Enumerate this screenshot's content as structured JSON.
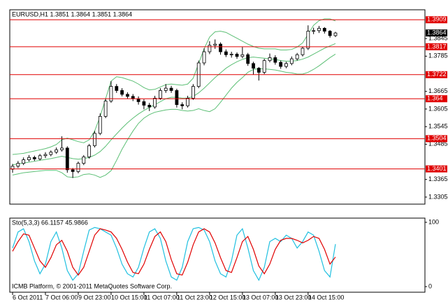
{
  "chart_data": [
    {
      "type": "candlestick",
      "title": "EURUSD,H1  1.3851 1.3864 1.3851 1.3864",
      "categories": [
        "6 Oct 2011",
        null,
        null,
        null,
        null,
        null,
        "7 Oct 06:00",
        null,
        null,
        null,
        null,
        null,
        "9 Oct 23:00",
        null,
        null,
        null,
        null,
        null,
        "10 Oct 15:00",
        null,
        null,
        null,
        null,
        null,
        "11 Oct 07:00",
        null,
        null,
        null,
        null,
        null,
        "11 Oct 23:00",
        null,
        null,
        null,
        null,
        null,
        "12 Oct 15:00",
        null,
        null,
        null,
        null,
        null,
        "13 Oct 07:00",
        null,
        null,
        null,
        null,
        null,
        "13 Oct 23:00",
        null,
        null,
        null,
        null,
        null,
        "14 Oct 15:00",
        null,
        null,
        null,
        null,
        null
      ],
      "open": [
        1.34,
        1.341,
        1.342,
        1.3432,
        1.344,
        1.3435,
        1.3446,
        1.345,
        1.3458,
        1.3466,
        1.3472,
        1.3398,
        1.3392,
        1.342,
        1.3442,
        1.348,
        1.3522,
        1.358,
        1.3632,
        1.3682,
        1.3668,
        1.3655,
        1.3648,
        1.364,
        1.363,
        1.3618,
        1.3612,
        1.3642,
        1.3668,
        1.3676,
        1.3668,
        1.362,
        1.3616,
        1.3642,
        1.3682,
        1.3762,
        1.38,
        1.3822,
        1.3826,
        1.38,
        1.379,
        1.3792,
        1.3784,
        1.379,
        1.376,
        1.3744,
        1.373,
        1.377,
        1.378,
        1.3764,
        1.375,
        1.376,
        1.3776,
        1.379,
        1.3812,
        1.387,
        1.3872,
        1.388,
        1.387,
        1.3855
      ],
      "high": [
        1.3418,
        1.3428,
        1.344,
        1.3448,
        1.3446,
        1.3452,
        1.3458,
        1.3464,
        1.3474,
        1.3512,
        1.3478,
        1.3404,
        1.3426,
        1.3448,
        1.3486,
        1.353,
        1.359,
        1.364,
        1.37,
        1.369,
        1.3676,
        1.3662,
        1.3656,
        1.3648,
        1.3638,
        1.3626,
        1.365,
        1.3676,
        1.369,
        1.3684,
        1.3674,
        1.3628,
        1.365,
        1.369,
        1.377,
        1.3812,
        1.3836,
        1.3842,
        1.3832,
        1.3808,
        1.38,
        1.3798,
        1.3816,
        1.3796,
        1.3766,
        1.3748,
        1.3776,
        1.3794,
        1.3788,
        1.377,
        1.3766,
        1.3784,
        1.3796,
        1.3818,
        1.389,
        1.3882,
        1.3888,
        1.3884,
        1.3874,
        1.3868
      ],
      "low": [
        1.3388,
        1.3404,
        1.3414,
        1.3426,
        1.3428,
        1.343,
        1.3438,
        1.3444,
        1.3452,
        1.346,
        1.3388,
        1.337,
        1.3386,
        1.3414,
        1.3436,
        1.3474,
        1.3516,
        1.3574,
        1.3626,
        1.366,
        1.3648,
        1.364,
        1.3632,
        1.362,
        1.3604,
        1.3598,
        1.3606,
        1.3636,
        1.366,
        1.366,
        1.361,
        1.3604,
        1.361,
        1.3636,
        1.3676,
        1.3754,
        1.3792,
        1.381,
        1.379,
        1.3782,
        1.378,
        1.3776,
        1.3778,
        1.3752,
        1.3722,
        1.3702,
        1.3724,
        1.3764,
        1.3756,
        1.3742,
        1.3744,
        1.3754,
        1.377,
        1.3784,
        1.3806,
        1.386,
        1.3864,
        1.3862,
        1.3848,
        1.385
      ],
      "close": [
        1.341,
        1.342,
        1.3432,
        1.344,
        1.3435,
        1.3446,
        1.345,
        1.3458,
        1.3466,
        1.3472,
        1.3398,
        1.3392,
        1.342,
        1.3442,
        1.348,
        1.3522,
        1.358,
        1.3632,
        1.3682,
        1.3668,
        1.3655,
        1.3648,
        1.364,
        1.363,
        1.3618,
        1.3612,
        1.3642,
        1.3668,
        1.3676,
        1.3668,
        1.362,
        1.3616,
        1.3642,
        1.3682,
        1.3762,
        1.38,
        1.3822,
        1.3826,
        1.38,
        1.379,
        1.3792,
        1.3784,
        1.379,
        1.376,
        1.3744,
        1.373,
        1.377,
        1.378,
        1.3764,
        1.375,
        1.376,
        1.3776,
        1.379,
        1.3812,
        1.387,
        1.3872,
        1.388,
        1.387,
        1.3855,
        1.3864
      ],
      "series": [
        {
          "color": "#5cbf75",
          "values": [
            1.345,
            1.3452,
            1.3454,
            1.3458,
            1.3462,
            1.3466,
            1.347,
            1.3476,
            1.3484,
            1.35,
            1.3506,
            1.35,
            1.3494,
            1.349,
            1.35,
            1.353,
            1.358,
            1.364,
            1.37,
            1.3715,
            1.3712,
            1.3706,
            1.37,
            1.369,
            1.3678,
            1.367,
            1.3672,
            1.368,
            1.3688,
            1.369,
            1.3688,
            1.3686,
            1.369,
            1.371,
            1.376,
            1.381,
            1.385,
            1.3868,
            1.387,
            1.3866,
            1.3856,
            1.3846,
            1.3836,
            1.3826,
            1.3818,
            1.3812,
            1.381,
            1.381,
            1.381,
            1.3806,
            1.3806,
            1.3808,
            1.3816,
            1.383,
            1.386,
            1.389,
            1.3906,
            1.3912,
            1.3912,
            1.3905
          ]
        },
        {
          "color": "#5cbf75",
          "values": [
            1.3415,
            1.3418,
            1.3421,
            1.3424,
            1.3427,
            1.343,
            1.3433,
            1.3436,
            1.344,
            1.3444,
            1.344,
            1.3436,
            1.3434,
            1.3436,
            1.344,
            1.3448,
            1.346,
            1.3478,
            1.35,
            1.352,
            1.354,
            1.3558,
            1.3574,
            1.3588,
            1.36,
            1.361,
            1.362,
            1.363,
            1.364,
            1.3645,
            1.3645,
            1.3642,
            1.3642,
            1.3648,
            1.366,
            1.3676,
            1.3694,
            1.3712,
            1.3728,
            1.3744,
            1.3756,
            1.3766,
            1.3774,
            1.378,
            1.3782,
            1.378,
            1.3778,
            1.3776,
            1.3774,
            1.377,
            1.3768,
            1.3768,
            1.377,
            1.3775,
            1.3782,
            1.3792,
            1.3802,
            1.3812,
            1.382,
            1.3828
          ]
        },
        {
          "color": "#5cbf75",
          "values": [
            1.338,
            1.3384,
            1.3388,
            1.339,
            1.3392,
            1.3394,
            1.3396,
            1.3396,
            1.3396,
            1.3388,
            1.3374,
            1.3372,
            1.3374,
            1.3382,
            1.3384,
            1.338,
            1.3372,
            1.338,
            1.3395,
            1.343,
            1.3468,
            1.35,
            1.353,
            1.3556,
            1.3574,
            1.3586,
            1.3594,
            1.3598,
            1.3602,
            1.3604,
            1.3604,
            1.36,
            1.3598,
            1.36,
            1.3606,
            1.36,
            1.3596,
            1.3606,
            1.3628,
            1.3652,
            1.3676,
            1.3696,
            1.3712,
            1.373,
            1.374,
            1.3742,
            1.3742,
            1.374,
            1.3738,
            1.3734,
            1.373,
            1.3728,
            1.3724,
            1.3724,
            1.373,
            1.374,
            1.3752,
            1.3766,
            1.378,
            1.3792
          ]
        }
      ],
      "levels": [
        1.3909,
        1.3817,
        1.3722,
        1.364,
        1.3504,
        1.3401
      ],
      "level_color": "#e00000",
      "current_price": 1.3864,
      "ylim": [
        1.3281,
        1.3943
      ],
      "yticks": [
        1.3845,
        1.3785,
        1.3665,
        1.3605,
        1.3545,
        1.3485,
        1.3365,
        1.3305
      ]
    },
    {
      "type": "line",
      "title": "Sto(5,3,3) 66.1157 45.9866",
      "series": [
        {
          "color": "#20c0e0",
          "values": [
            60,
            85,
            90,
            70,
            40,
            20,
            35,
            70,
            85,
            60,
            25,
            10,
            20,
            55,
            88,
            92,
            90,
            85,
            80,
            60,
            35,
            20,
            15,
            30,
            60,
            85,
            90,
            75,
            40,
            15,
            10,
            30,
            70,
            90,
            92,
            88,
            70,
            40,
            20,
            15,
            40,
            80,
            90,
            60,
            25,
            10,
            30,
            70,
            75,
            70,
            80,
            75,
            60,
            70,
            85,
            80,
            55,
            25,
            15,
            66.1157
          ]
        },
        {
          "color": "#e00000",
          "values": [
            55,
            70,
            82,
            80,
            60,
            40,
            30,
            45,
            65,
            72,
            55,
            30,
            18,
            30,
            55,
            80,
            90,
            88,
            85,
            75,
            58,
            38,
            22,
            20,
            35,
            58,
            78,
            85,
            70,
            42,
            20,
            18,
            38,
            65,
            85,
            90,
            85,
            68,
            45,
            25,
            22,
            45,
            70,
            78,
            58,
            32,
            20,
            35,
            58,
            72,
            75,
            75,
            72,
            68,
            72,
            78,
            75,
            58,
            35,
            45.9866
          ]
        }
      ],
      "ylim": [
        0,
        100
      ],
      "yticks": [
        0,
        100
      ]
    }
  ],
  "footer": "ICMB Platform, © 2001-2011 MetaQuotes Software Corp."
}
